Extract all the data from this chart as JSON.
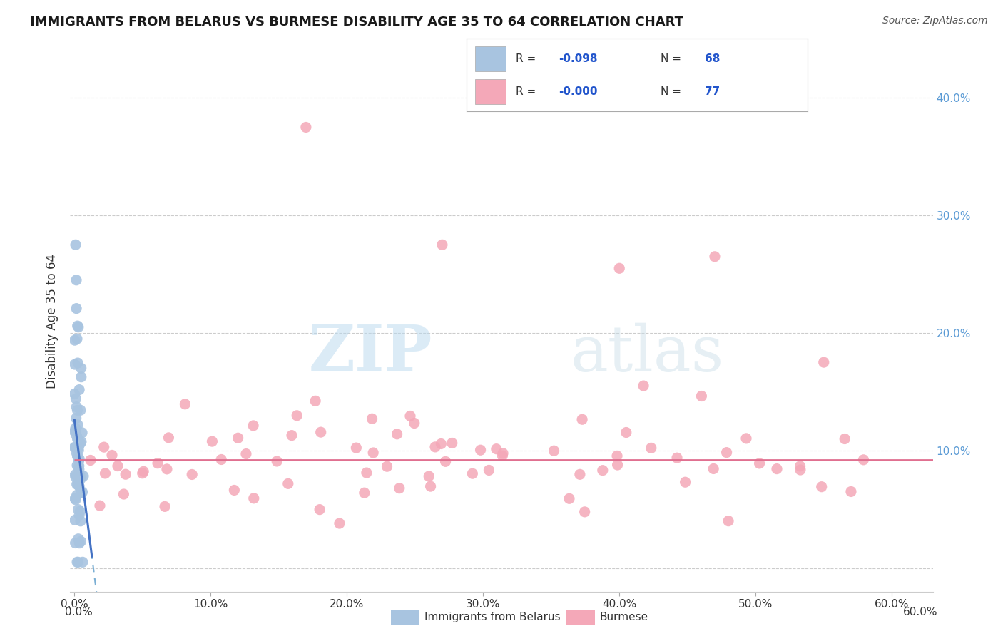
{
  "title": "IMMIGRANTS FROM BELARUS VS BURMESE DISABILITY AGE 35 TO 64 CORRELATION CHART",
  "source": "Source: ZipAtlas.com",
  "ylabel": "Disability Age 35 to 64",
  "r1": "-0.098",
  "n1": "68",
  "r2": "-0.000",
  "n2": "77",
  "legend_label1": "Immigrants from Belarus",
  "legend_label2": "Burmese",
  "color1": "#a8c4e0",
  "color2": "#f4a8b8",
  "trendline1_color": "#4472c4",
  "trendline2_color": "#e07090",
  "watermark_zip": "ZIP",
  "watermark_atlas": "atlas",
  "background_color": "#ffffff",
  "grid_color": "#cccccc",
  "xlim": [
    -0.003,
    0.63
  ],
  "ylim": [
    -0.02,
    0.44
  ],
  "x_ticks": [
    0.0,
    0.1,
    0.2,
    0.3,
    0.4,
    0.5,
    0.6
  ],
  "y_ticks": [
    0.0,
    0.1,
    0.2,
    0.3,
    0.4
  ],
  "title_fontsize": 13,
  "source_fontsize": 10,
  "tick_fontsize": 11,
  "ylabel_fontsize": 12,
  "right_tick_color": "#5b9bd5",
  "left_tick_color": "#333333"
}
